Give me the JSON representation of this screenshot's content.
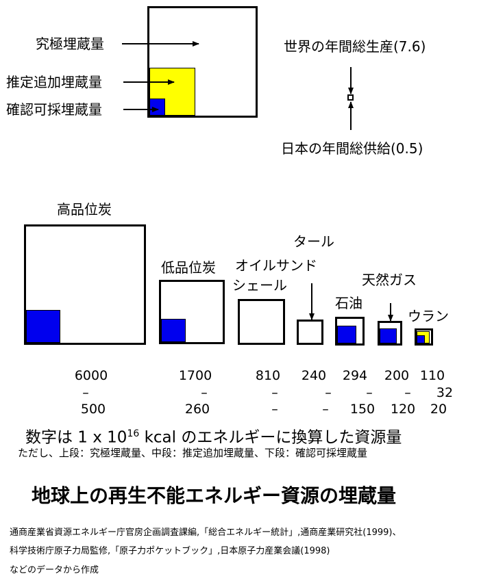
{
  "legend": {
    "ultimate_label": "究極埋蔵量",
    "estimated_label": "推定追加埋蔵量",
    "confirmed_label": "確認可採埋蔵量",
    "world_label": "世界の年間総生産(7.6)",
    "japan_label": "日本の年間総供給(0.5)"
  },
  "colors": {
    "confirmed": "#0000ee",
    "estimated": "#ffff00",
    "outline": "#000000"
  },
  "resources": [
    {
      "name": "高品位炭",
      "ultimate": "6000",
      "estimated": "–",
      "confirmed": "500"
    },
    {
      "name": "低品位炭",
      "ultimate": "1700",
      "estimated": "–",
      "confirmed": "260"
    },
    {
      "name": "オイルサンド\nシェール",
      "ultimate": "810",
      "estimated": "–",
      "confirmed": "–"
    },
    {
      "name": "タール",
      "ultimate": "240",
      "estimated": "–",
      "confirmed": "–"
    },
    {
      "name": "石油",
      "ultimate": "294",
      "estimated": "–",
      "confirmed": "150"
    },
    {
      "name": "天然ガス",
      "ultimate": "200",
      "estimated": "–",
      "confirmed": "120"
    },
    {
      "name": "ウラン",
      "ultimate": "110",
      "estimated": "32",
      "confirmed": "20"
    }
  ],
  "names": {
    "high_coal": "高品位炭",
    "low_coal": "低品位炭",
    "oil_sand_1": "オイルサンド",
    "oil_sand_2": "シェール",
    "tar": "タール",
    "oil": "石油",
    "gas": "天然ガス",
    "uranium": "ウラン"
  },
  "unit_note": {
    "prefix": "数字は 1 x 10",
    "exponent": "16",
    "suffix": " kcal のエネルギーに換算した資源量"
  },
  "tier_note": "ただし、上段：究極埋蔵量、中段：推定追加埋蔵量、下段：確認可採埋蔵量",
  "title": "地球上の再生不能エネルギー資源の埋蔵量",
  "sources": [
    "通商産業省資源エネルギー庁官房企画調査課編,「総合エネルギー統計」,通商産業研究社(1999)、",
    "科学技術庁原子力局監修,「原子力ポケットブック」,日本原子力産業会議(1998)",
    "などのデータから作成"
  ]
}
